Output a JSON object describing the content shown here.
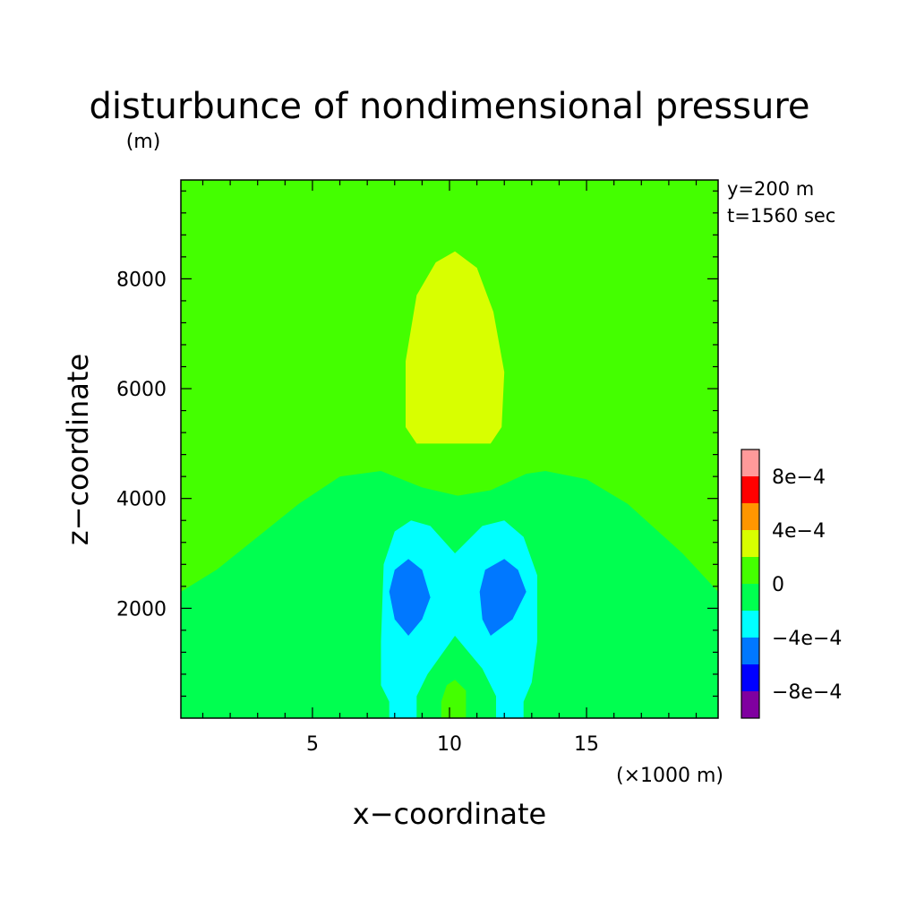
{
  "chart_data": {
    "type": "contour",
    "title": "disturbunce of nondimensional pressure",
    "z_unit_label": "(m)",
    "xlabel": "x−coordinate",
    "ylabel": "z−coordinate",
    "x_unit_label": "(×1000 m)",
    "xlim": [
      0.2,
      19.8
    ],
    "ylim": [
      0,
      9800
    ],
    "x_ticks": [
      {
        "value": 5,
        "label": "5"
      },
      {
        "value": 10,
        "label": "10"
      },
      {
        "value": 15,
        "label": "15"
      }
    ],
    "y_ticks": [
      {
        "value": 2000,
        "label": "2000"
      },
      {
        "value": 4000,
        "label": "4000"
      },
      {
        "value": 6000,
        "label": "6000"
      },
      {
        "value": 8000,
        "label": "8000"
      }
    ],
    "annotations": [
      "y=200 m",
      "t=1560 sec"
    ],
    "colorbar": {
      "levels": [
        {
          "range": [
            -0.001,
            -0.0008
          ],
          "color": "#8000a0"
        },
        {
          "range": [
            -0.0008,
            -0.0006
          ],
          "color": "#0000ff"
        },
        {
          "range": [
            -0.0006,
            -0.0004
          ],
          "color": "#0078ff"
        },
        {
          "range": [
            -0.0004,
            -0.0002
          ],
          "color": "#00ffff"
        },
        {
          "range": [
            -0.0002,
            0
          ],
          "color": "#00ff50"
        },
        {
          "range": [
            0,
            0.0002
          ],
          "color": "#44ff00"
        },
        {
          "range": [
            0.0002,
            0.0004
          ],
          "color": "#d8ff00"
        },
        {
          "range": [
            0.0004,
            0.0006
          ],
          "color": "#ff9600"
        },
        {
          "range": [
            0.0006,
            0.0008
          ],
          "color": "#ff0000"
        },
        {
          "range": [
            0.0008,
            0.001
          ],
          "color": "#ff9a9a"
        }
      ],
      "tick_labels": [
        {
          "value": 0.0008,
          "label": "8e−4"
        },
        {
          "value": 0.0004,
          "label": "4e−4"
        },
        {
          "value": 0,
          "label": "0"
        },
        {
          "value": -0.0004,
          "label": "−4e−4"
        },
        {
          "value": -0.0008,
          "label": "−8e−4"
        }
      ]
    },
    "field_regions": [
      {
        "name": "background",
        "color": "#44ff00",
        "outline": [
          [
            0.2,
            0
          ],
          [
            19.8,
            0
          ],
          [
            19.8,
            9800
          ],
          [
            0.2,
            9800
          ]
        ]
      },
      {
        "name": "upper-positive-cell",
        "color": "#d8ff00",
        "outline": [
          [
            8.8,
            5000
          ],
          [
            8.4,
            5300
          ],
          [
            8.4,
            6500
          ],
          [
            8.8,
            7700
          ],
          [
            9.5,
            8300
          ],
          [
            10.2,
            8500
          ],
          [
            11.0,
            8200
          ],
          [
            11.6,
            7400
          ],
          [
            12.0,
            6300
          ],
          [
            11.9,
            5300
          ],
          [
            11.5,
            5000
          ]
        ]
      },
      {
        "name": "lower-negative-zone",
        "color": "#00ff50",
        "outline": [
          [
            0.2,
            0
          ],
          [
            19.8,
            0
          ],
          [
            19.8,
            2300
          ],
          [
            18.5,
            3000
          ],
          [
            16.5,
            3900
          ],
          [
            15.0,
            4350
          ],
          [
            13.5,
            4500
          ],
          [
            12.8,
            4450
          ],
          [
            11.5,
            4150
          ],
          [
            10.3,
            4050
          ],
          [
            9.0,
            4200
          ],
          [
            7.5,
            4500
          ],
          [
            6.0,
            4400
          ],
          [
            4.5,
            3900
          ],
          [
            3.0,
            3300
          ],
          [
            1.5,
            2700
          ],
          [
            0.2,
            2300
          ]
        ]
      },
      {
        "name": "negative-x-pattern",
        "color": "#00ffff",
        "outline": [
          [
            7.4,
            0
          ],
          [
            7.8,
            0
          ],
          [
            7.8,
            300
          ],
          [
            7.5,
            600
          ],
          [
            7.5,
            1400
          ],
          [
            7.6,
            2800
          ],
          [
            8.0,
            3400
          ],
          [
            8.6,
            3600
          ],
          [
            9.3,
            3500
          ],
          [
            10.2,
            3000
          ],
          [
            11.2,
            3500
          ],
          [
            12.0,
            3600
          ],
          [
            12.7,
            3300
          ],
          [
            13.2,
            2600
          ],
          [
            13.2,
            1400
          ],
          [
            13.0,
            650
          ],
          [
            12.7,
            300
          ],
          [
            12.7,
            0
          ],
          [
            11.7,
            0
          ],
          [
            11.7,
            400
          ],
          [
            11.2,
            900
          ],
          [
            10.2,
            1500
          ],
          [
            9.2,
            800
          ],
          [
            8.8,
            400
          ],
          [
            8.8,
            0
          ]
        ]
      },
      {
        "name": "left-minimum",
        "color": "#0078ff",
        "outline": [
          [
            8.5,
            1500
          ],
          [
            8.0,
            1800
          ],
          [
            7.8,
            2300
          ],
          [
            8.0,
            2700
          ],
          [
            8.5,
            2900
          ],
          [
            9.0,
            2700
          ],
          [
            9.3,
            2200
          ],
          [
            9.0,
            1800
          ]
        ]
      },
      {
        "name": "right-minimum",
        "color": "#0078ff",
        "outline": [
          [
            11.5,
            1500
          ],
          [
            11.2,
            1800
          ],
          [
            11.1,
            2300
          ],
          [
            11.3,
            2700
          ],
          [
            12.0,
            2900
          ],
          [
            12.5,
            2700
          ],
          [
            12.8,
            2300
          ],
          [
            12.3,
            1800
          ]
        ]
      },
      {
        "name": "bottom-center-cell",
        "color": "#44ff00",
        "outline": [
          [
            9.7,
            0
          ],
          [
            9.7,
            300
          ],
          [
            9.9,
            600
          ],
          [
            10.2,
            700
          ],
          [
            10.6,
            500
          ],
          [
            10.6,
            0
          ]
        ]
      }
    ]
  }
}
